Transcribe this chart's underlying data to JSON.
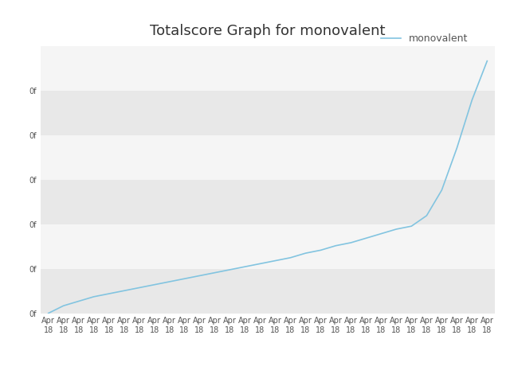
{
  "title": "Totalscore Graph for monovalent",
  "legend_label": "monovalent",
  "line_color": "#82c4e0",
  "background_color": "#ffffff",
  "plot_bg_color": "#ffffff",
  "band_color_dark": "#e8e8e8",
  "band_color_light": "#f5f5f5",
  "x_labels": [
    "Apr\n18",
    "Apr\n18",
    "Apr\n18",
    "Apr\n18",
    "Apr\n18",
    "Apr\n18",
    "Apr\n18",
    "Apr\n18",
    "Apr\n18",
    "Apr\n18",
    "Apr\n18",
    "Apr\n18",
    "Apr\n18",
    "Apr\n18",
    "Apr\n18",
    "Apr\n18",
    "Apr\n18",
    "Apr\n18",
    "Apr\n18",
    "Apr\n18",
    "Apr\n18",
    "Apr\n18",
    "Apr\n18",
    "Apr\n18",
    "Apr\n18",
    "Apr\n18",
    "Apr\n18",
    "Apr\n18",
    "Apr\n18",
    "Apr\n18"
  ],
  "y_values": [
    0,
    0.05,
    0.08,
    0.11,
    0.13,
    0.15,
    0.17,
    0.19,
    0.21,
    0.23,
    0.25,
    0.27,
    0.29,
    0.31,
    0.33,
    0.35,
    0.37,
    0.4,
    0.42,
    0.45,
    0.47,
    0.5,
    0.53,
    0.56,
    0.58,
    0.65,
    0.82,
    1.1,
    1.42,
    1.68
  ],
  "ytick_labels": [
    "0f",
    "0f",
    "0f",
    "0f",
    "0f",
    "0f"
  ],
  "n_bands": 6,
  "title_fontsize": 13,
  "legend_fontsize": 9,
  "tick_fontsize": 7,
  "figsize": [
    6.4,
    4.8
  ],
  "dpi": 100,
  "line_width": 1.2
}
